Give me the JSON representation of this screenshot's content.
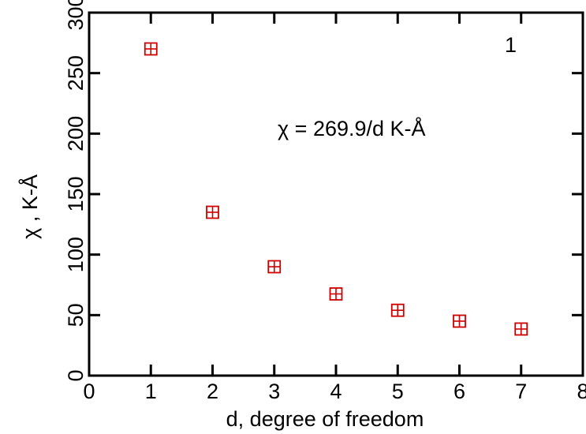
{
  "chart_data": {
    "type": "scatter",
    "title": "",
    "xlabel": "d, degree of freedom",
    "ylabel": "χ ,  K-Å",
    "xlim": [
      0,
      8
    ],
    "ylim": [
      0,
      300
    ],
    "x_ticks": [
      "0",
      "1",
      "2",
      "3",
      "4",
      "5",
      "6",
      "7",
      "8"
    ],
    "y_ticks": [
      "0",
      "50",
      "100",
      "150",
      "200",
      "250",
      "300"
    ],
    "panel_label": "1",
    "annotation": "χ = 269.9/d K-Å",
    "grid": false,
    "marker_color": "#cc0000",
    "series": [
      {
        "marker": "boxed-plus",
        "x": [
          1,
          2,
          3,
          4,
          5,
          6,
          7
        ],
        "y": [
          270,
          135,
          90,
          67.5,
          54,
          45,
          38.5
        ]
      }
    ]
  }
}
